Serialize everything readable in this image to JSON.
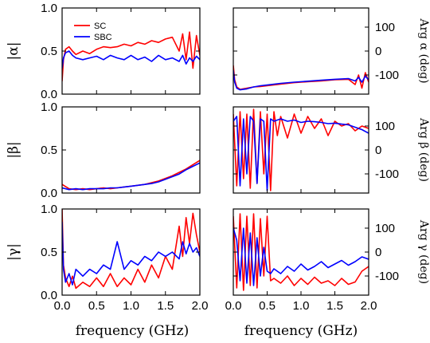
{
  "colors": {
    "SC": "#ff0000",
    "SBC": "#0000ff",
    "axis": "#000000",
    "background": "#ffffff"
  },
  "legend": {
    "position": "upper-left",
    "entries": [
      "SC",
      "SBC"
    ]
  },
  "x_axis_label": "frequency (GHz)",
  "chart_data": [
    {
      "type": "line",
      "panel": "top-left",
      "ylabel": "|α|",
      "ylabel_side": "left",
      "xlim": [
        0,
        2
      ],
      "ylim": [
        0,
        1
      ],
      "xticks": [
        "0.0",
        "0.5",
        "1.0",
        "1.5",
        "2.0"
      ],
      "yticks": [
        "0.0",
        "0.5",
        "1.0"
      ],
      "show_xtick_labels": false,
      "series": [
        {
          "name": "SC",
          "x": [
            0.0,
            0.02,
            0.05,
            0.1,
            0.15,
            0.2,
            0.3,
            0.4,
            0.5,
            0.6,
            0.7,
            0.8,
            0.9,
            1.0,
            1.1,
            1.2,
            1.3,
            1.4,
            1.5,
            1.6,
            1.7,
            1.75,
            1.8,
            1.85,
            1.9,
            1.95,
            2.0
          ],
          "values": [
            0.15,
            0.4,
            0.52,
            0.55,
            0.5,
            0.46,
            0.5,
            0.47,
            0.52,
            0.55,
            0.54,
            0.55,
            0.58,
            0.56,
            0.6,
            0.58,
            0.62,
            0.6,
            0.64,
            0.66,
            0.5,
            0.7,
            0.4,
            0.72,
            0.3,
            0.68,
            0.45
          ]
        },
        {
          "name": "SBC",
          "x": [
            0.0,
            0.02,
            0.05,
            0.1,
            0.15,
            0.2,
            0.3,
            0.4,
            0.5,
            0.6,
            0.7,
            0.8,
            0.9,
            1.0,
            1.1,
            1.2,
            1.3,
            1.4,
            1.5,
            1.6,
            1.7,
            1.75,
            1.8,
            1.85,
            1.9,
            1.95,
            2.0
          ],
          "values": [
            0.3,
            0.42,
            0.48,
            0.5,
            0.45,
            0.42,
            0.4,
            0.42,
            0.44,
            0.4,
            0.45,
            0.42,
            0.4,
            0.45,
            0.4,
            0.43,
            0.38,
            0.45,
            0.4,
            0.42,
            0.38,
            0.45,
            0.35,
            0.42,
            0.38,
            0.44,
            0.4
          ]
        }
      ]
    },
    {
      "type": "line",
      "panel": "top-right",
      "ylabel": "Arg α (deg)",
      "ylabel_side": "right",
      "xlim": [
        0,
        2
      ],
      "ylim": [
        -180,
        180
      ],
      "xticks": [
        "0.0",
        "0.5",
        "1.0",
        "1.5",
        "2.0"
      ],
      "yticks": [
        "-100",
        "0",
        "100"
      ],
      "show_xtick_labels": false,
      "series": [
        {
          "name": "SC",
          "x": [
            0.0,
            0.02,
            0.05,
            0.1,
            0.2,
            0.3,
            0.4,
            0.5,
            0.7,
            0.9,
            1.1,
            1.3,
            1.5,
            1.7,
            1.8,
            1.85,
            1.9,
            1.95,
            2.0
          ],
          "values": [
            -60,
            -120,
            -150,
            -160,
            -155,
            -150,
            -148,
            -145,
            -138,
            -132,
            -128,
            -125,
            -120,
            -118,
            -140,
            -100,
            -155,
            -90,
            -130
          ]
        },
        {
          "name": "SBC",
          "x": [
            0.0,
            0.02,
            0.05,
            0.1,
            0.2,
            0.3,
            0.4,
            0.5,
            0.7,
            0.9,
            1.1,
            1.3,
            1.5,
            1.7,
            1.8,
            1.85,
            1.9,
            1.95,
            2.0
          ],
          "values": [
            -80,
            -130,
            -155,
            -162,
            -158,
            -150,
            -145,
            -142,
            -135,
            -130,
            -126,
            -122,
            -118,
            -115,
            -125,
            -110,
            -130,
            -105,
            -120
          ]
        }
      ]
    },
    {
      "type": "line",
      "panel": "middle-left",
      "ylabel": "|β|",
      "ylabel_side": "left",
      "xlim": [
        0,
        2
      ],
      "ylim": [
        0,
        1
      ],
      "xticks": [
        "0.0",
        "0.5",
        "1.0",
        "1.5",
        "2.0"
      ],
      "yticks": [
        "0.0",
        "0.5",
        "1.0"
      ],
      "show_xtick_labels": false,
      "series": [
        {
          "name": "SC",
          "x": [
            0.0,
            0.1,
            0.2,
            0.3,
            0.4,
            0.5,
            0.6,
            0.7,
            0.8,
            0.9,
            1.0,
            1.1,
            1.2,
            1.3,
            1.4,
            1.5,
            1.6,
            1.7,
            1.8,
            1.9,
            2.0
          ],
          "values": [
            0.1,
            0.05,
            0.04,
            0.05,
            0.04,
            0.05,
            0.06,
            0.05,
            0.06,
            0.07,
            0.08,
            0.09,
            0.1,
            0.12,
            0.14,
            0.17,
            0.2,
            0.24,
            0.28,
            0.33,
            0.38
          ]
        },
        {
          "name": "SBC",
          "x": [
            0.0,
            0.1,
            0.2,
            0.3,
            0.4,
            0.5,
            0.6,
            0.7,
            0.8,
            0.9,
            1.0,
            1.1,
            1.2,
            1.3,
            1.4,
            1.5,
            1.6,
            1.7,
            1.8,
            1.9,
            2.0
          ],
          "values": [
            0.06,
            0.04,
            0.05,
            0.04,
            0.05,
            0.05,
            0.05,
            0.06,
            0.06,
            0.07,
            0.08,
            0.09,
            0.1,
            0.11,
            0.13,
            0.16,
            0.19,
            0.22,
            0.27,
            0.31,
            0.35
          ]
        }
      ]
    },
    {
      "type": "line",
      "panel": "middle-right",
      "ylabel": "Arg β (deg)",
      "ylabel_side": "right",
      "xlim": [
        0,
        2
      ],
      "ylim": [
        -180,
        180
      ],
      "xticks": [
        "0.0",
        "0.5",
        "1.0",
        "1.5",
        "2.0"
      ],
      "yticks": [
        "-100",
        "0",
        "100"
      ],
      "show_xtick_labels": false,
      "series": [
        {
          "name": "SC",
          "x": [
            0.0,
            0.05,
            0.1,
            0.15,
            0.2,
            0.25,
            0.3,
            0.35,
            0.4,
            0.45,
            0.5,
            0.55,
            0.6,
            0.65,
            0.7,
            0.8,
            0.9,
            1.0,
            1.1,
            1.2,
            1.3,
            1.4,
            1.5,
            1.6,
            1.7,
            1.8,
            1.9,
            2.0
          ],
          "values": [
            150,
            -150,
            160,
            -120,
            150,
            -160,
            170,
            -140,
            160,
            -100,
            150,
            -170,
            160,
            60,
            140,
            50,
            150,
            70,
            140,
            90,
            130,
            60,
            120,
            100,
            110,
            80,
            100,
            90
          ]
        },
        {
          "name": "SBC",
          "x": [
            0.0,
            0.05,
            0.1,
            0.15,
            0.2,
            0.25,
            0.3,
            0.35,
            0.4,
            0.45,
            0.5,
            0.55,
            0.6,
            0.65,
            0.7,
            0.8,
            0.9,
            1.0,
            1.1,
            1.2,
            1.3,
            1.4,
            1.5,
            1.6,
            1.7,
            1.8,
            1.9,
            2.0
          ],
          "values": [
            120,
            140,
            -150,
            130,
            -100,
            140,
            120,
            -140,
            130,
            120,
            -170,
            130,
            120,
            125,
            130,
            120,
            125,
            115,
            120,
            118,
            115,
            110,
            112,
            108,
            105,
            95,
            85,
            70
          ]
        }
      ]
    },
    {
      "type": "line",
      "panel": "bottom-left",
      "ylabel": "|γ|",
      "ylabel_side": "left",
      "xlim": [
        0,
        2
      ],
      "ylim": [
        0,
        1
      ],
      "xticks": [
        "0.0",
        "0.5",
        "1.0",
        "1.5",
        "2.0"
      ],
      "yticks": [
        "0.0",
        "0.5",
        "1.0"
      ],
      "show_xtick_labels": true,
      "series": [
        {
          "name": "SC",
          "x": [
            0.0,
            0.02,
            0.05,
            0.1,
            0.15,
            0.2,
            0.3,
            0.4,
            0.5,
            0.6,
            0.7,
            0.8,
            0.9,
            1.0,
            1.1,
            1.2,
            1.3,
            1.4,
            1.5,
            1.6,
            1.7,
            1.75,
            1.8,
            1.85,
            1.9,
            1.95,
            2.0
          ],
          "values": [
            1.0,
            0.35,
            0.2,
            0.1,
            0.22,
            0.08,
            0.15,
            0.1,
            0.2,
            0.1,
            0.25,
            0.1,
            0.2,
            0.12,
            0.3,
            0.15,
            0.35,
            0.2,
            0.45,
            0.3,
            0.8,
            0.45,
            0.9,
            0.6,
            0.95,
            0.7,
            0.5
          ]
        },
        {
          "name": "SBC",
          "x": [
            0.0,
            0.02,
            0.05,
            0.1,
            0.15,
            0.2,
            0.3,
            0.4,
            0.5,
            0.6,
            0.7,
            0.8,
            0.9,
            1.0,
            1.1,
            1.2,
            1.3,
            1.4,
            1.5,
            1.6,
            1.7,
            1.75,
            1.8,
            1.85,
            1.9,
            1.95,
            2.0
          ],
          "values": [
            0.85,
            0.3,
            0.15,
            0.25,
            0.12,
            0.3,
            0.22,
            0.3,
            0.25,
            0.35,
            0.3,
            0.62,
            0.3,
            0.4,
            0.35,
            0.45,
            0.4,
            0.5,
            0.45,
            0.5,
            0.42,
            0.62,
            0.48,
            0.6,
            0.5,
            0.55,
            0.45
          ]
        }
      ]
    },
    {
      "type": "line",
      "panel": "bottom-right",
      "ylabel": "Arg γ (deg)",
      "ylabel_side": "right",
      "xlim": [
        0,
        2
      ],
      "ylim": [
        -180,
        180
      ],
      "xticks": [
        "0.0",
        "0.5",
        "1.0",
        "1.5",
        "2.0"
      ],
      "yticks": [
        "-100",
        "0",
        "100"
      ],
      "show_xtick_labels": true,
      "series": [
        {
          "name": "SC",
          "x": [
            0.0,
            0.05,
            0.1,
            0.15,
            0.2,
            0.25,
            0.3,
            0.35,
            0.4,
            0.45,
            0.5,
            0.55,
            0.6,
            0.7,
            0.8,
            0.9,
            1.0,
            1.1,
            1.2,
            1.3,
            1.4,
            1.5,
            1.6,
            1.7,
            1.8,
            1.9,
            2.0
          ],
          "values": [
            150,
            -150,
            160,
            -160,
            150,
            -140,
            160,
            -150,
            140,
            -100,
            150,
            -120,
            -110,
            -130,
            -100,
            -140,
            -110,
            -135,
            -105,
            -130,
            -120,
            -140,
            -110,
            -135,
            -125,
            -80,
            -60
          ]
        },
        {
          "name": "SBC",
          "x": [
            0.0,
            0.05,
            0.1,
            0.15,
            0.2,
            0.25,
            0.3,
            0.35,
            0.4,
            0.45,
            0.5,
            0.55,
            0.6,
            0.7,
            0.8,
            0.9,
            1.0,
            1.1,
            1.2,
            1.3,
            1.4,
            1.5,
            1.6,
            1.7,
            1.8,
            1.9,
            2.0
          ],
          "values": [
            100,
            50,
            -120,
            100,
            -130,
            80,
            -140,
            60,
            -100,
            20,
            -80,
            -90,
            -70,
            -90,
            -60,
            -80,
            -50,
            -75,
            -60,
            -40,
            -65,
            -50,
            -35,
            -55,
            -40,
            -20,
            -30
          ]
        }
      ]
    }
  ]
}
